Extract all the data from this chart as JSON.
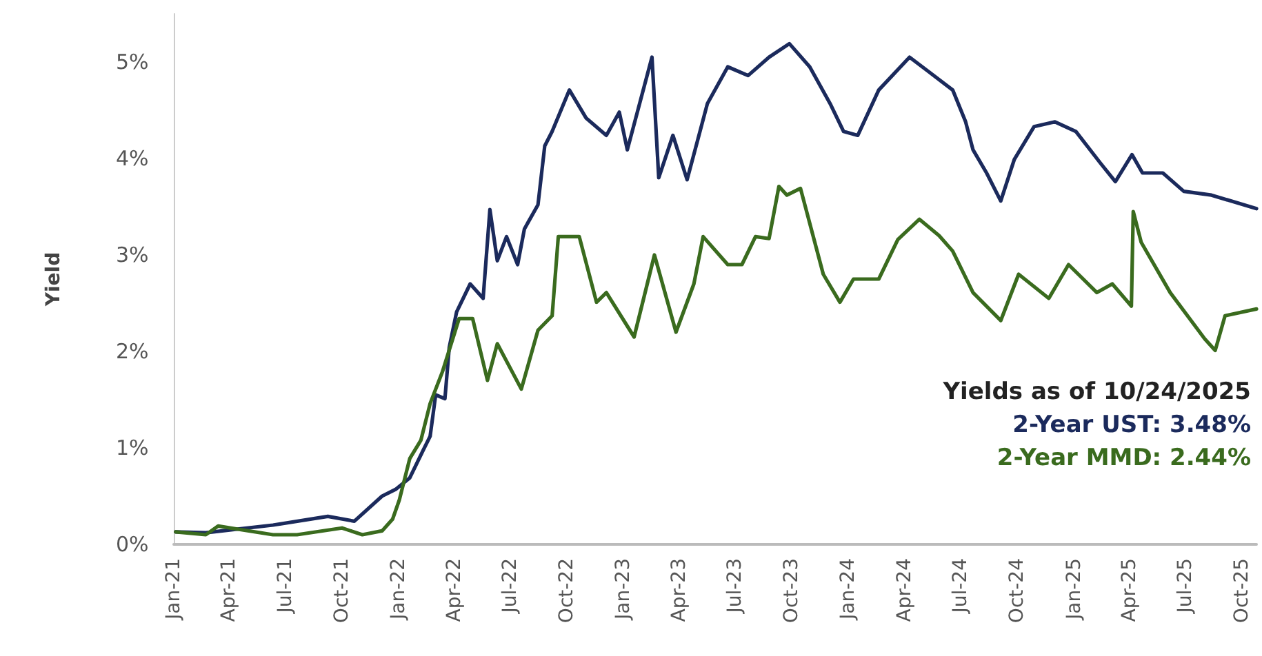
{
  "chart_data": {
    "type": "line",
    "ylabel": "Yield",
    "x": [
      "2021-01-04",
      "2021-02-22",
      "2021-06-11",
      "2021-09-08",
      "2021-10-21",
      "2021-12-05",
      "2021-12-27",
      "2022-01-19",
      "2022-02-10",
      "2022-02-21",
      "2022-03-02",
      "2022-03-17",
      "2022-03-24",
      "2022-04-05",
      "2022-04-27",
      "2022-05-18",
      "2022-05-29",
      "2022-06-10",
      "2022-06-25",
      "2022-07-13",
      "2022-07-24",
      "2022-08-15",
      "2022-08-26",
      "2022-09-07",
      "2022-10-05",
      "2022-11-01",
      "2022-12-04",
      "2022-12-25",
      "2023-01-07",
      "2023-02-16",
      "2023-02-27",
      "2023-03-22",
      "2023-04-14",
      "2023-05-17",
      "2023-06-19",
      "2023-07-22",
      "2023-08-25",
      "2023-09-27",
      "2023-10-30",
      "2023-12-02",
      "2023-12-24",
      "2024-01-16",
      "2024-02-19",
      "2024-04-09",
      "2024-05-10",
      "2024-06-18",
      "2024-07-09",
      "2024-07-21",
      "2024-08-12",
      "2024-09-04",
      "2024-09-26",
      "2024-10-28",
      "2024-12-01",
      "2025-01-04",
      "2025-02-13",
      "2025-03-09",
      "2025-04-05",
      "2025-04-22",
      "2025-05-25",
      "2025-06-28",
      "2025-08-12",
      "2025-10-24"
    ],
    "series": [
      {
        "color": "#1b2a5c",
        "values": [
          0.13,
          0.12,
          0.2,
          0.29,
          0.24,
          0.5,
          0.57,
          0.69,
          0.98,
          1.12,
          1.55,
          1.51,
          2.04,
          2.41,
          2.7,
          2.55,
          3.47,
          2.94,
          3.19,
          2.9,
          3.27,
          3.52,
          4.13,
          4.28,
          4.71,
          4.42,
          4.24,
          4.48,
          4.09,
          5.05,
          3.8,
          4.24,
          3.78,
          4.57,
          4.95,
          4.86,
          5.05,
          5.19,
          4.95,
          4.57,
          4.28,
          4.24,
          4.71,
          5.05,
          4.9,
          4.71,
          4.38,
          4.09,
          3.85,
          3.56,
          3.99,
          4.33,
          4.38,
          4.28,
          3.95,
          3.76,
          4.04,
          3.85,
          3.85,
          3.66,
          3.62,
          3.48
        ]
      },
      {
        "color": "#3a6b1e",
        "x": [
          "2021-01-04",
          "2021-02-22",
          "2021-03-14",
          "2021-06-11",
          "2021-07-20",
          "2021-10-01",
          "2021-11-03",
          "2021-12-05",
          "2021-12-22",
          "2022-01-02",
          "2022-01-19",
          "2022-02-06",
          "2022-02-21",
          "2022-03-13",
          "2022-04-09",
          "2022-05-01",
          "2022-05-25",
          "2022-06-10",
          "2022-07-19",
          "2022-08-15",
          "2022-09-07",
          "2022-09-17",
          "2022-10-21",
          "2022-11-18",
          "2022-12-04",
          "2023-01-18",
          "2023-02-20",
          "2023-03-27",
          "2023-04-25",
          "2023-05-10",
          "2023-06-19",
          "2023-07-12",
          "2023-08-03",
          "2023-08-25",
          "2023-09-10",
          "2023-09-23",
          "2023-10-15",
          "2023-11-21",
          "2023-12-18",
          "2024-01-09",
          "2024-02-19",
          "2024-03-21",
          "2024-04-25",
          "2024-05-27",
          "2024-06-18",
          "2024-07-21",
          "2024-09-04",
          "2024-10-03",
          "2024-11-21",
          "2024-12-23",
          "2025-02-07",
          "2025-03-04",
          "2025-04-04",
          "2025-04-07",
          "2025-04-20",
          "2025-06-06",
          "2025-08-01",
          "2025-08-18",
          "2025-09-03",
          "2025-10-24"
        ],
        "values": [
          0.13,
          0.1,
          0.19,
          0.1,
          0.1,
          0.17,
          0.1,
          0.14,
          0.26,
          0.46,
          0.89,
          1.08,
          1.46,
          1.79,
          2.34,
          2.34,
          1.7,
          2.08,
          1.61,
          2.22,
          2.37,
          3.19,
          3.19,
          2.51,
          2.61,
          2.15,
          3.0,
          2.2,
          2.7,
          3.19,
          2.9,
          2.9,
          3.19,
          3.17,
          3.71,
          3.62,
          3.69,
          2.8,
          2.51,
          2.75,
          2.75,
          3.16,
          3.37,
          3.2,
          3.04,
          2.61,
          2.32,
          2.8,
          2.55,
          2.9,
          2.61,
          2.7,
          2.47,
          3.45,
          3.13,
          2.61,
          2.13,
          2.01,
          2.37,
          2.44
        ]
      }
    ],
    "xlim": [
      "2021-01-01",
      "2025-10-24"
    ],
    "xticks": [
      {
        "value": "2021-01-01",
        "label": "Jan-21"
      },
      {
        "value": "2021-04-01",
        "label": "Apr-21"
      },
      {
        "value": "2021-07-01",
        "label": "Jul-21"
      },
      {
        "value": "2021-10-01",
        "label": "Oct-21"
      },
      {
        "value": "2022-01-01",
        "label": "Jan-22"
      },
      {
        "value": "2022-04-01",
        "label": "Apr-22"
      },
      {
        "value": "2022-07-01",
        "label": "Jul-22"
      },
      {
        "value": "2022-10-01",
        "label": "Oct-22"
      },
      {
        "value": "2023-01-01",
        "label": "Jan-23"
      },
      {
        "value": "2023-04-01",
        "label": "Apr-23"
      },
      {
        "value": "2023-07-01",
        "label": "Jul-23"
      },
      {
        "value": "2023-10-01",
        "label": "Oct-23"
      },
      {
        "value": "2024-01-01",
        "label": "Jan-24"
      },
      {
        "value": "2024-04-01",
        "label": "Apr-24"
      },
      {
        "value": "2024-07-01",
        "label": "Jul-24"
      },
      {
        "value": "2024-10-01",
        "label": "Oct-24"
      },
      {
        "value": "2025-01-01",
        "label": "Jan-25"
      },
      {
        "value": "2025-04-01",
        "label": "Apr-25"
      },
      {
        "value": "2025-07-01",
        "label": "Jul-25"
      },
      {
        "value": "2025-10-01",
        "label": "Oct-25"
      }
    ],
    "ylim": [
      0,
      5.5
    ],
    "yticks": [
      {
        "value": 0,
        "label": "0%"
      },
      {
        "value": 1,
        "label": "1%"
      },
      {
        "value": 2,
        "label": "2%"
      },
      {
        "value": 3,
        "label": "3%"
      },
      {
        "value": 4,
        "label": "4%"
      },
      {
        "value": 5,
        "label": "5%"
      }
    ],
    "annotations": [
      "Yields as of 10/24/2025",
      "2-Year UST: 3.48%",
      "2-Year MMD: 2.44%"
    ],
    "grid": false,
    "marker": "none",
    "line_style": "solid"
  }
}
